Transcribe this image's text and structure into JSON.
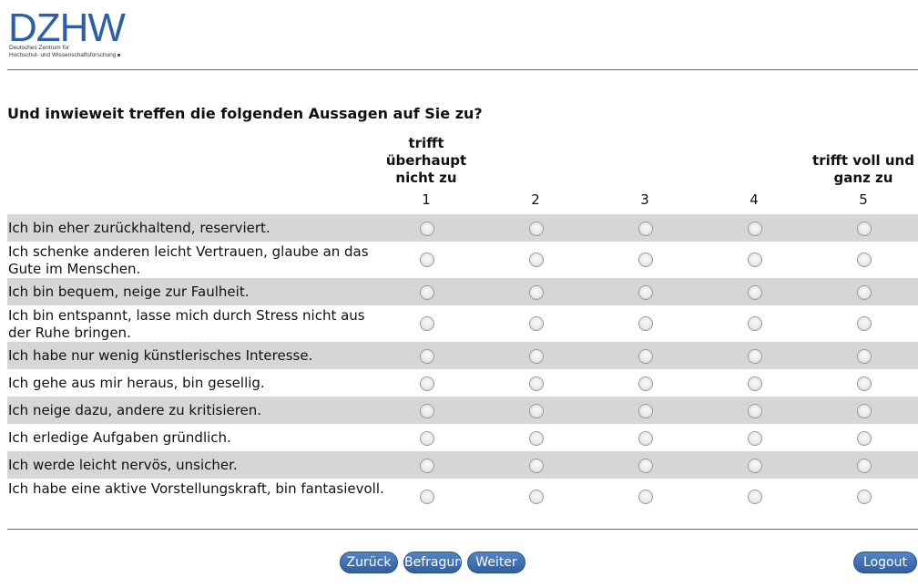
{
  "logo": {
    "word": "DZHW",
    "subtitle_line1": "Deutsches Zentrum für",
    "subtitle_line2": "Hochschul- und Wissenschaftsforschung"
  },
  "question": "Und inwieweit treffen die folgenden Aussagen auf Sie zu?",
  "scale": {
    "low_label": "trifft überhaupt nicht zu",
    "high_label": "trifft voll und ganz zu",
    "numbers": [
      "1",
      "2",
      "3",
      "4",
      "5"
    ]
  },
  "items": [
    "Ich bin eher zurückhaltend, reserviert.",
    "Ich schenke anderen leicht Vertrauen, glaube an das Gute im Menschen.",
    "Ich bin bequem, neige zur Faulheit.",
    "Ich bin entspannt, lasse mich durch Stress nicht aus der Ruhe bringen.",
    "Ich habe nur wenig künstlerisches Interesse.",
    "Ich gehe aus mir heraus, bin gesellig.",
    "Ich neige dazu, andere zu kritisieren.",
    "Ich erledige Aufgaben gründlich.",
    "Ich werde leicht nervös, unsicher.",
    "Ich habe eine aktive Vorstellungskraft, bin fantasievoll."
  ],
  "buttons": {
    "back": "Zurück",
    "survey": "Befragung",
    "next": "Weiter",
    "logout": "Logout"
  },
  "colors": {
    "brand": "#2b5fa8",
    "button": "#3a6aaa",
    "row_shade": "#d6d6d6"
  }
}
